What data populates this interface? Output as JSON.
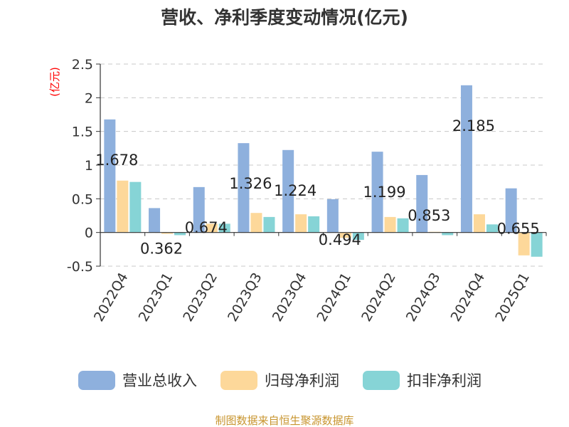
{
  "chart_data": {
    "type": "bar",
    "title": "营收、净利季度变动情况(亿元)",
    "ylabel": "(亿元)",
    "ylim": [
      -0.5,
      2.5
    ],
    "yticks": [
      "2.5",
      "2",
      "1.5",
      "1",
      "0.5",
      "0",
      "-0.5"
    ],
    "grid": true,
    "legend_position": "bottom",
    "categories": [
      "2022Q4",
      "2023Q1",
      "2023Q2",
      "2023Q3",
      "2023Q4",
      "2024Q1",
      "2024Q2",
      "2024Q3",
      "2024Q4",
      "2025Q1"
    ],
    "series": [
      {
        "name": "营业总收入",
        "color": "#8eb0dd",
        "values": [
          1.678,
          0.362,
          0.674,
          1.326,
          1.224,
          0.494,
          1.199,
          0.853,
          2.185,
          0.655
        ],
        "labels": [
          "1.678",
          "0.362",
          "0.674",
          "1.326",
          "1.224",
          "0.494",
          "1.199",
          "0.853",
          "2.185",
          "0.655"
        ]
      },
      {
        "name": "归母净利润",
        "color": "#fdd89a",
        "values": [
          0.77,
          -0.02,
          0.13,
          0.29,
          0.27,
          -0.08,
          0.23,
          0.01,
          0.27,
          -0.34
        ]
      },
      {
        "name": "扣非净利润",
        "color": "#86d4d6",
        "values": [
          0.75,
          -0.04,
          0.13,
          0.23,
          0.24,
          -0.11,
          0.21,
          -0.04,
          0.12,
          -0.36
        ]
      }
    ],
    "source": "制图数据来自恒生聚源数据库"
  }
}
